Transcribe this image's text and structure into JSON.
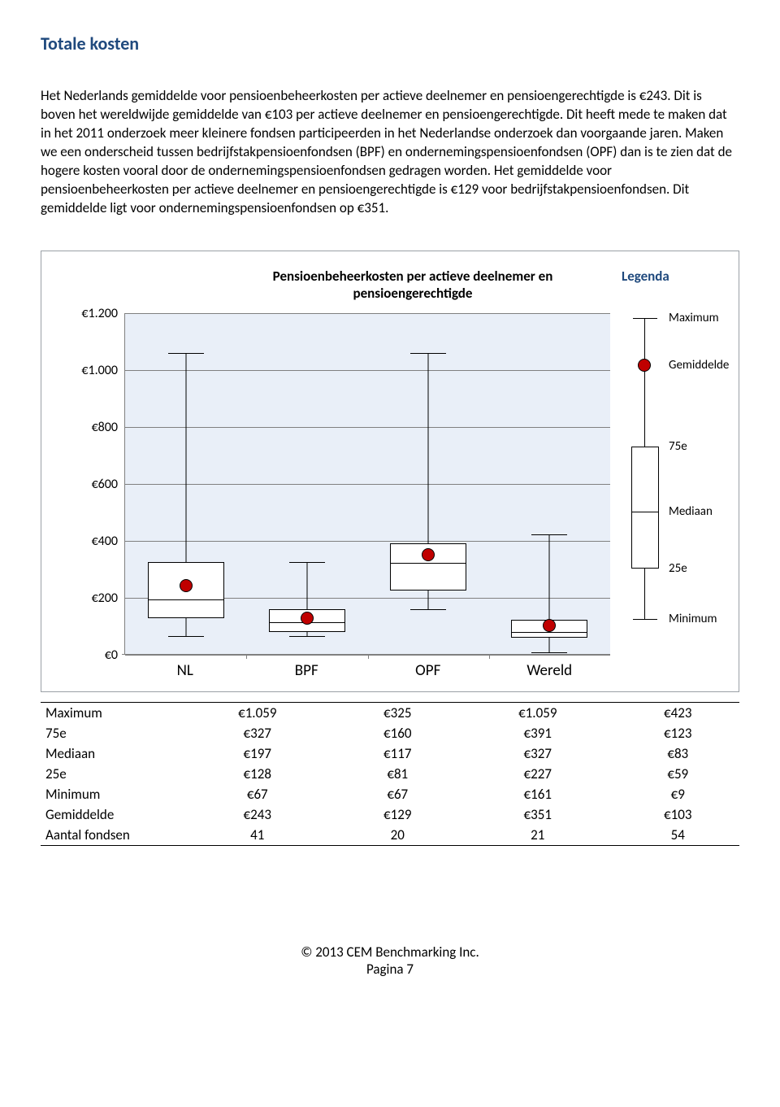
{
  "title": "Totale kosten",
  "paragraph": "Het Nederlands gemiddelde voor pensioenbeheerkosten per actieve deelnemer en pensioengerechtigde is €243. Dit is boven het wereldwijde gemiddelde van €103 per actieve deelnemer en pensioengerechtigde. Dit heeft mede te maken dat in het 2011 onderzoek meer kleinere fondsen participeerden in het Nederlandse onderzoek dan voorgaande jaren. Maken we een onderscheid tussen bedrijfstakpensioenfondsen (BPF) en ondernemingspensioenfondsen (OPF) dan is te zien dat de hogere kosten vooral door de ondernemingspensioenfondsen gedragen worden. Het gemiddelde voor pensioenbeheerkosten per actieve deelnemer en pensioengerechtigde is €129 voor bedrijfstakpensioenfondsen. Dit gemiddelde ligt voor ondernemingspensioenfondsen op €351.",
  "chart": {
    "title": "Pensioenbeheerkosten per actieve deelnemer en pensioengerechtigde",
    "y_ticks": [
      "€1.200",
      "€1.000",
      "€800",
      "€600",
      "€400",
      "€200",
      "€0"
    ],
    "y_values": [
      1200,
      1000,
      800,
      600,
      400,
      200,
      0
    ],
    "y_max": 1200,
    "categories": [
      "NL",
      "BPF",
      "OPF",
      "Wereld"
    ],
    "series": [
      {
        "max": 1059,
        "p75": 327,
        "median": 197,
        "p25": 128,
        "min": 67,
        "mean": 243
      },
      {
        "max": 325,
        "p75": 160,
        "median": 117,
        "p25": 81,
        "min": 67,
        "mean": 129
      },
      {
        "max": 1059,
        "p75": 391,
        "median": 327,
        "p25": 227,
        "min": 161,
        "mean": 351
      },
      {
        "max": 423,
        "p75": 123,
        "median": 83,
        "p25": 59,
        "min": 9,
        "mean": 103
      }
    ],
    "background": "#e9eff8",
    "box_fill": "#ffffff",
    "mean_color": "#c00000"
  },
  "legend": {
    "title": "Legenda",
    "labels": {
      "max": "Maximum",
      "mean": "Gemiddelde",
      "p75": "75e",
      "median": "Mediaan",
      "p25": "25e",
      "min": "Minimum"
    }
  },
  "table": {
    "row_labels": [
      "Maximum",
      "75e",
      "Mediaan",
      "25e",
      "Minimum",
      "Gemiddelde",
      "Aantal fondsen"
    ],
    "cols": [
      "NL",
      "BPF",
      "OPF",
      "Wereld"
    ],
    "rows": [
      [
        "€1.059",
        "€325",
        "€1.059",
        "€423"
      ],
      [
        "€327",
        "€160",
        "€391",
        "€123"
      ],
      [
        "€197",
        "€117",
        "€327",
        "€83"
      ],
      [
        "€128",
        "€81",
        "€227",
        "€59"
      ],
      [
        "€67",
        "€67",
        "€161",
        "€9"
      ],
      [
        "€243",
        "€129",
        "€351",
        "€103"
      ],
      [
        "41",
        "20",
        "21",
        "54"
      ]
    ]
  },
  "footer": {
    "copyright": "© 2013 CEM Benchmarking Inc.",
    "page": "Pagina 7"
  }
}
